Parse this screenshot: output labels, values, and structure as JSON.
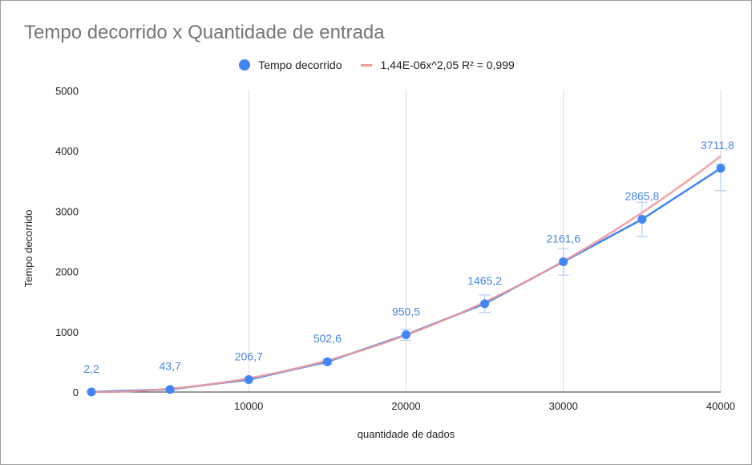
{
  "chart_data": {
    "type": "line",
    "title": "Tempo decorrido x Quantidade de entrada",
    "xlabel": "quantidade de dados",
    "ylabel": "Tempo decorrido",
    "xlim": [
      0,
      40000
    ],
    "ylim": [
      0,
      5000
    ],
    "x_ticks": [
      10000,
      20000,
      30000,
      40000
    ],
    "y_ticks": [
      0,
      1000,
      2000,
      3000,
      4000,
      5000
    ],
    "x_tick_labels": [
      "10000",
      "20000",
      "30000",
      "40000"
    ],
    "y_tick_labels": [
      "0",
      "1000",
      "2000",
      "3000",
      "4000",
      "5000"
    ],
    "grid": "vertical",
    "legend_position": "top",
    "series": [
      {
        "name": "Tempo decorrido",
        "color": "#4285f4",
        "x": [
          0,
          5000,
          10000,
          15000,
          20000,
          25000,
          30000,
          35000,
          40000
        ],
        "y": [
          2.2,
          43.7,
          206.7,
          502.6,
          950.5,
          1465.2,
          2161.6,
          2865.8,
          3711.8
        ],
        "labels": [
          "2,2",
          "43,7",
          "206,7",
          "502,6",
          "950,5",
          "1465,2",
          "2161,6",
          "2865,8",
          "3711,8"
        ],
        "error_low": [
          2.2,
          43.7,
          206.7,
          460,
          860,
          1320,
          1940,
          2580,
          3340
        ],
        "error_high": [
          2.2,
          43.7,
          206.7,
          545,
          1040,
          1610,
          2380,
          3150,
          3780
        ]
      }
    ],
    "trendline": {
      "name": "1,44E-06x^2,05 R² = 0,999",
      "color": "#ef9a9a",
      "coefficient": 1.44e-06,
      "exponent": 2.05
    }
  }
}
